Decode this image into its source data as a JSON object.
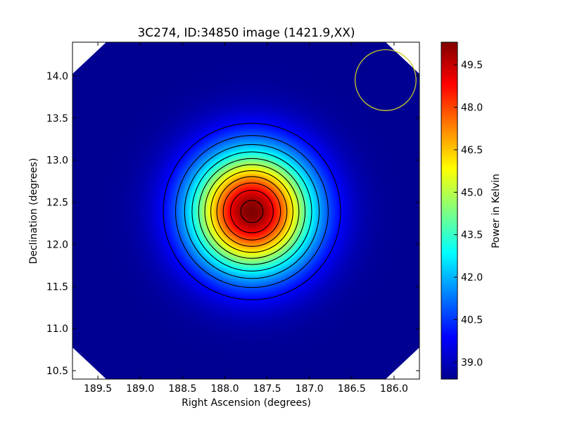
{
  "chart_data": {
    "type": "heatmap",
    "title": "3C274, ID:34850 image (1421.9,XX)",
    "xlabel": "Right Ascension (degrees)",
    "ylabel": "Declination (degrees)",
    "xlim": [
      189.8,
      185.7
    ],
    "ylim": [
      10.4,
      14.4
    ],
    "x_ticks": [
      {
        "value": 189.5,
        "label": "189.5"
      },
      {
        "value": 189.0,
        "label": "189.0"
      },
      {
        "value": 188.5,
        "label": "188.5"
      },
      {
        "value": 188.0,
        "label": "188.0"
      },
      {
        "value": 187.5,
        "label": "187.5"
      },
      {
        "value": 187.0,
        "label": "187.0"
      },
      {
        "value": 186.5,
        "label": "186.5"
      },
      {
        "value": 186.0,
        "label": "186.0"
      }
    ],
    "y_ticks": [
      {
        "value": 10.5,
        "label": "10.5"
      },
      {
        "value": 11.0,
        "label": "11.0"
      },
      {
        "value": 11.5,
        "label": "11.5"
      },
      {
        "value": 12.0,
        "label": "12.0"
      },
      {
        "value": 12.5,
        "label": "12.5"
      },
      {
        "value": 13.0,
        "label": "13.0"
      },
      {
        "value": 13.5,
        "label": "13.5"
      },
      {
        "value": 14.0,
        "label": "14.0"
      }
    ],
    "colorbar": {
      "label": "Power in Kelvin",
      "colormap": "jet",
      "range": [
        38.4,
        50.3
      ],
      "ticks": [
        {
          "value": 39.0,
          "label": "39.0"
        },
        {
          "value": 40.5,
          "label": "40.5"
        },
        {
          "value": 42.0,
          "label": "42.0"
        },
        {
          "value": 43.5,
          "label": "43.5"
        },
        {
          "value": 45.0,
          "label": "45.0"
        },
        {
          "value": 46.5,
          "label": "46.5"
        },
        {
          "value": 48.0,
          "label": "48.0"
        },
        {
          "value": 49.5,
          "label": "49.5"
        }
      ]
    },
    "source": {
      "ra": 187.68,
      "dec": 12.39,
      "peak": 50.3,
      "background": 38.6,
      "sigma_deg": 0.5
    },
    "contour_levels": [
      39.9,
      40.9,
      41.9,
      42.9,
      43.9,
      44.9,
      45.9,
      46.9,
      47.9,
      48.9,
      49.9
    ],
    "beam_circle": {
      "ra": 186.1,
      "dec": 13.95,
      "radius_deg": 0.36,
      "color": "#c8c828"
    },
    "colors": {
      "contour": "#000000",
      "mask": "#ffffff",
      "background_value": "#00008f"
    }
  }
}
